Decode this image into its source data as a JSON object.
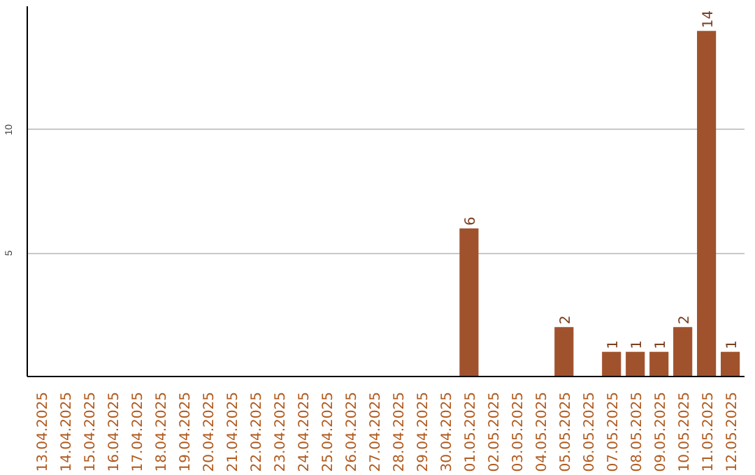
{
  "chart_data": {
    "type": "bar",
    "categories": [
      "13.04.2025",
      "14.04.2025",
      "15.04.2025",
      "16.04.2025",
      "17.04.2025",
      "18.04.2025",
      "19.04.2025",
      "20.04.2025",
      "21.04.2025",
      "22.04.2025",
      "23.04.2025",
      "24.04.2025",
      "25.04.2025",
      "26.04.2025",
      "27.04.2025",
      "28.04.2025",
      "29.04.2025",
      "30.04.2025",
      "01.05.2025",
      "02.05.2025",
      "03.05.2025",
      "04.05.2025",
      "05.05.2025",
      "06.05.2025",
      "07.05.2025",
      "08.05.2025",
      "09.05.2025",
      "10.05.2025",
      "11.05.2025",
      "12.05.2025"
    ],
    "values": [
      0,
      0,
      0,
      0,
      0,
      0,
      0,
      0,
      0,
      0,
      0,
      0,
      0,
      0,
      0,
      0,
      0,
      0,
      6,
      0,
      0,
      0,
      2,
      0,
      1,
      1,
      1,
      2,
      14,
      1
    ],
    "value_labels": [
      null,
      null,
      null,
      null,
      null,
      null,
      null,
      null,
      null,
      null,
      null,
      null,
      null,
      null,
      null,
      null,
      null,
      null,
      "6",
      null,
      null,
      null,
      "2",
      null,
      "1",
      "1",
      "1",
      "2",
      "14",
      "1"
    ],
    "color": "#a0522d",
    "ylim": [
      0,
      15
    ],
    "yticks": [
      5,
      10
    ],
    "grid": "y"
  }
}
